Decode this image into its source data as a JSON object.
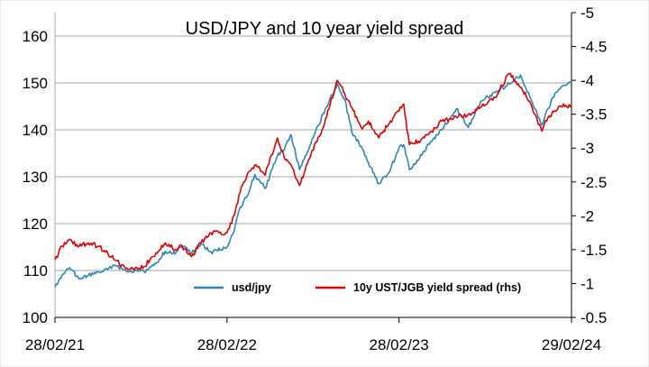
{
  "chart_data": {
    "type": "line",
    "title": "USD/JPY and 10 year yield spread",
    "x_tick_labels": [
      "28/02/21",
      "28/02/22",
      "28/02/23",
      "29/02/24"
    ],
    "x_ticks": [
      "2021-02-28",
      "2022-02-28",
      "2023-02-28",
      "2024-02-29"
    ],
    "xlim": [
      "2021-02-28",
      "2024-02-29"
    ],
    "y_left": {
      "ylim": [
        100,
        165
      ],
      "ticks": [
        100,
        110,
        120,
        130,
        140,
        150,
        160
      ]
    },
    "y_right": {
      "ylim": [
        -0.5,
        -5
      ],
      "inverted": true,
      "ticks": [
        -0.5,
        -1,
        -1.5,
        -2,
        -2.5,
        -3,
        -3.5,
        -4,
        -4.5,
        -5
      ]
    },
    "grid": true,
    "legend_position": "bottom-center",
    "series": [
      {
        "name": "usd/jpy",
        "axis": "left",
        "color": "#2E86B8",
        "points": [
          [
            "2021-02-28",
            106.5
          ],
          [
            "2021-03-15",
            108.9
          ],
          [
            "2021-03-31",
            110.6
          ],
          [
            "2021-04-20",
            108.2
          ],
          [
            "2021-05-10",
            108.9
          ],
          [
            "2021-05-31",
            109.7
          ],
          [
            "2021-06-20",
            110.2
          ],
          [
            "2021-07-05",
            111.0
          ],
          [
            "2021-07-25",
            110.1
          ],
          [
            "2021-08-15",
            109.8
          ],
          [
            "2021-09-05",
            109.8
          ],
          [
            "2021-09-30",
            111.5
          ],
          [
            "2021-10-20",
            114.1
          ],
          [
            "2021-11-10",
            113.5
          ],
          [
            "2021-11-25",
            115.3
          ],
          [
            "2021-12-15",
            113.7
          ],
          [
            "2022-01-04",
            115.8
          ],
          [
            "2022-01-25",
            113.9
          ],
          [
            "2022-02-28",
            115.0
          ],
          [
            "2022-03-15",
            118.3
          ],
          [
            "2022-03-28",
            123.5
          ],
          [
            "2022-04-15",
            126.5
          ],
          [
            "2022-04-28",
            130.5
          ],
          [
            "2022-05-20",
            127.5
          ],
          [
            "2022-06-15",
            134.5
          ],
          [
            "2022-06-30",
            135.8
          ],
          [
            "2022-07-14",
            139.0
          ],
          [
            "2022-08-01",
            131.5
          ],
          [
            "2022-08-25",
            137.0
          ],
          [
            "2022-09-20",
            143.5
          ],
          [
            "2022-10-20",
            149.8
          ],
          [
            "2022-11-05",
            146.5
          ],
          [
            "2022-11-20",
            139.5
          ],
          [
            "2022-12-10",
            136.5
          ],
          [
            "2022-12-25",
            133.0
          ],
          [
            "2023-01-16",
            128.5
          ],
          [
            "2023-02-10",
            131.5
          ],
          [
            "2023-02-28",
            136.2
          ],
          [
            "2023-03-10",
            136.8
          ],
          [
            "2023-03-22",
            131.5
          ],
          [
            "2023-04-10",
            133.5
          ],
          [
            "2023-05-01",
            137.0
          ],
          [
            "2023-05-30",
            140.0
          ],
          [
            "2023-06-30",
            144.5
          ],
          [
            "2023-07-25",
            140.5
          ],
          [
            "2023-08-20",
            146.0
          ],
          [
            "2023-09-20",
            148.0
          ],
          [
            "2023-10-20",
            149.8
          ],
          [
            "2023-11-13",
            151.7
          ],
          [
            "2023-12-05",
            146.5
          ],
          [
            "2023-12-28",
            141.0
          ],
          [
            "2024-01-10",
            144.5
          ],
          [
            "2024-01-25",
            147.8
          ],
          [
            "2024-02-12",
            149.5
          ],
          [
            "2024-02-29",
            150.0
          ]
        ]
      },
      {
        "name": "10y UST/JGB yield spread (rhs)",
        "axis": "right",
        "color": "#E00000",
        "points": [
          [
            "2021-02-28",
            -1.35
          ],
          [
            "2021-03-15",
            -1.55
          ],
          [
            "2021-03-31",
            -1.65
          ],
          [
            "2021-04-20",
            -1.55
          ],
          [
            "2021-05-10",
            -1.6
          ],
          [
            "2021-05-31",
            -1.55
          ],
          [
            "2021-06-20",
            -1.45
          ],
          [
            "2021-07-05",
            -1.35
          ],
          [
            "2021-07-25",
            -1.25
          ],
          [
            "2021-08-15",
            -1.2
          ],
          [
            "2021-09-05",
            -1.25
          ],
          [
            "2021-09-30",
            -1.45
          ],
          [
            "2021-10-20",
            -1.6
          ],
          [
            "2021-11-10",
            -1.5
          ],
          [
            "2021-11-25",
            -1.55
          ],
          [
            "2021-12-15",
            -1.4
          ],
          [
            "2022-01-04",
            -1.6
          ],
          [
            "2022-01-25",
            -1.75
          ],
          [
            "2022-02-28",
            -1.75
          ],
          [
            "2022-03-15",
            -2.0
          ],
          [
            "2022-03-28",
            -2.35
          ],
          [
            "2022-04-15",
            -2.65
          ],
          [
            "2022-04-28",
            -2.75
          ],
          [
            "2022-05-20",
            -2.6
          ],
          [
            "2022-06-15",
            -3.15
          ],
          [
            "2022-06-30",
            -2.85
          ],
          [
            "2022-07-14",
            -2.75
          ],
          [
            "2022-08-01",
            -2.45
          ],
          [
            "2022-08-25",
            -2.9
          ],
          [
            "2022-09-20",
            -3.3
          ],
          [
            "2022-10-20",
            -4.0
          ],
          [
            "2022-11-05",
            -3.8
          ],
          [
            "2022-11-20",
            -3.6
          ],
          [
            "2022-12-10",
            -3.3
          ],
          [
            "2022-12-25",
            -3.4
          ],
          [
            "2023-01-16",
            -3.15
          ],
          [
            "2023-02-10",
            -3.4
          ],
          [
            "2023-02-28",
            -3.55
          ],
          [
            "2023-03-10",
            -3.65
          ],
          [
            "2023-03-22",
            -3.05
          ],
          [
            "2023-04-10",
            -3.1
          ],
          [
            "2023-05-01",
            -3.2
          ],
          [
            "2023-05-30",
            -3.4
          ],
          [
            "2023-06-30",
            -3.45
          ],
          [
            "2023-07-25",
            -3.5
          ],
          [
            "2023-08-20",
            -3.6
          ],
          [
            "2023-09-20",
            -3.75
          ],
          [
            "2023-10-20",
            -4.1
          ],
          [
            "2023-11-13",
            -3.9
          ],
          [
            "2023-12-05",
            -3.65
          ],
          [
            "2023-12-28",
            -3.25
          ],
          [
            "2024-01-10",
            -3.45
          ],
          [
            "2024-01-25",
            -3.55
          ],
          [
            "2024-02-12",
            -3.65
          ],
          [
            "2024-02-29",
            -3.6
          ]
        ]
      }
    ]
  }
}
